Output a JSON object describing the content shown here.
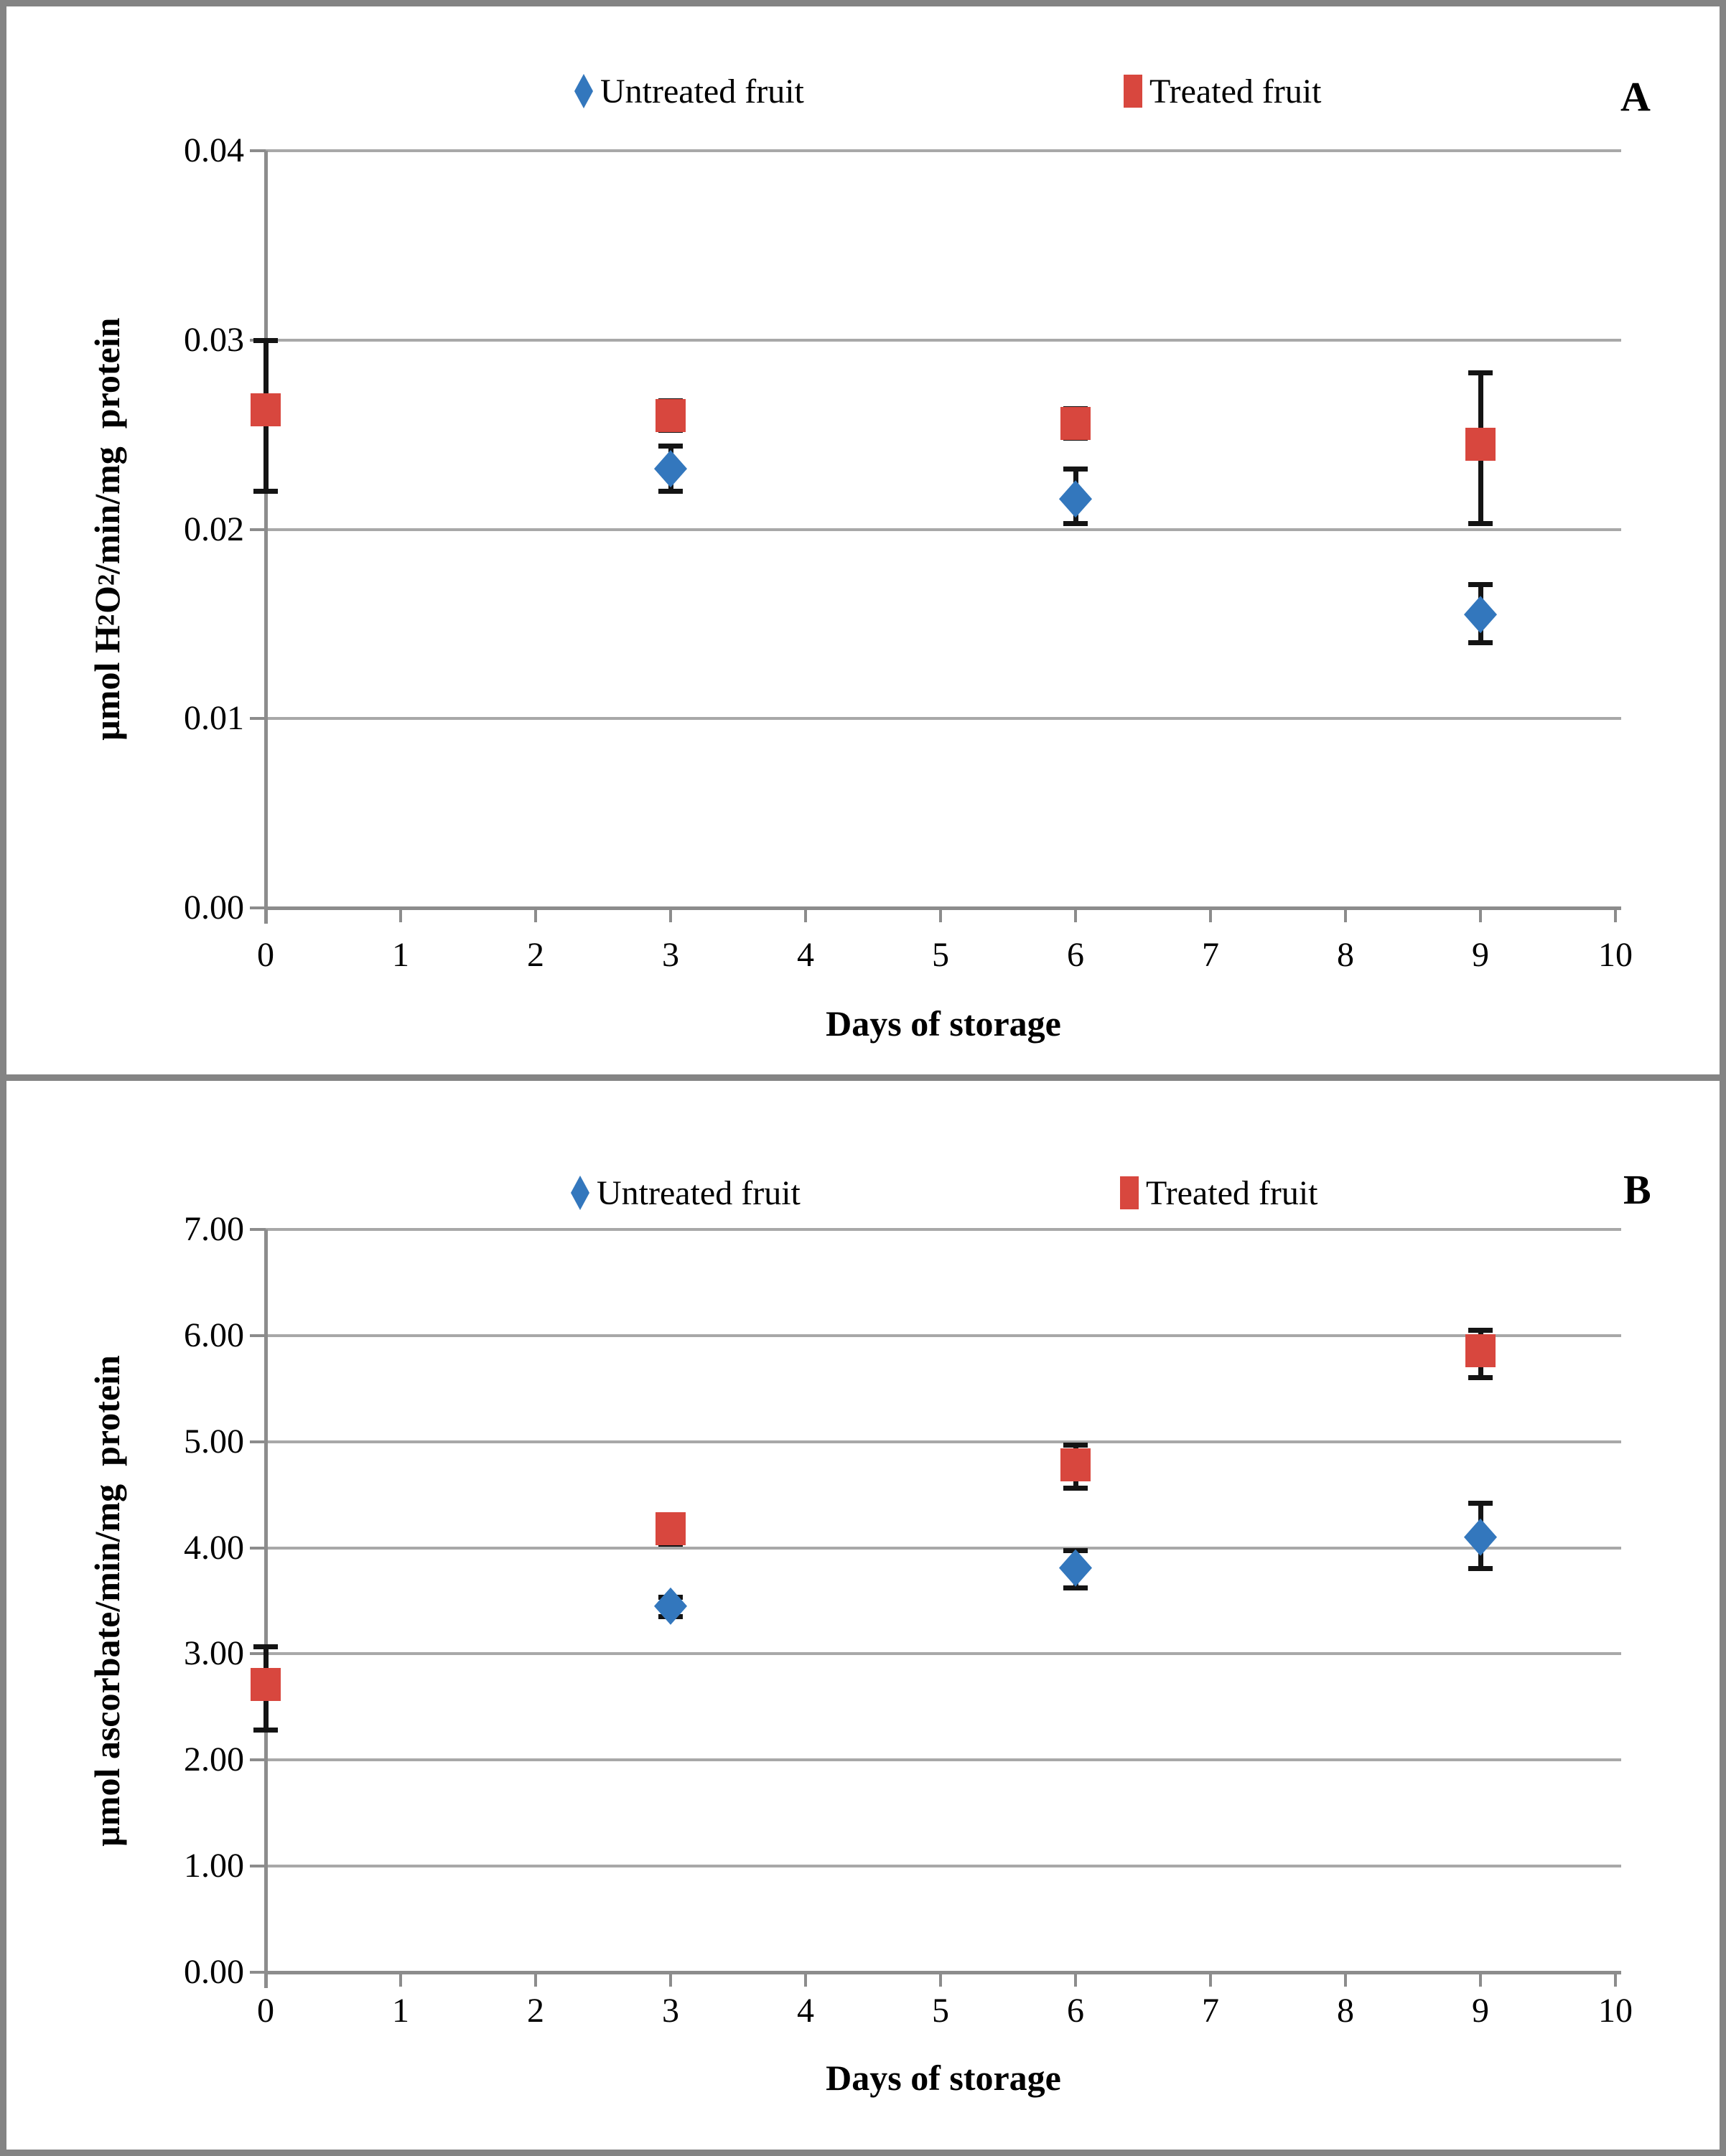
{
  "colors": {
    "untreated": "#3377BD",
    "treated": "#D8473E",
    "error_bar": "#141414",
    "gridline": "#A8A8A8",
    "axis": "#8C8C8C",
    "border": "#848484"
  },
  "chart_data": [
    {
      "panel_label": "A",
      "type": "scatter",
      "title": "",
      "xlabel": "Days of storage",
      "ylabel": "µmol H2O2/min/mg  protein",
      "ylabel_parts": [
        {
          "text": "µmol H"
        },
        {
          "sub": "2"
        },
        {
          "text": "O"
        },
        {
          "sub": "2"
        },
        {
          "text": "/min/mg  protein"
        }
      ],
      "xlim": [
        0,
        10
      ],
      "ylim": [
        0,
        0.04
      ],
      "xticks": [
        0,
        1,
        2,
        3,
        4,
        5,
        6,
        7,
        8,
        9,
        10
      ],
      "ytick_values": [
        0,
        0.01,
        0.02,
        0.03,
        0.04
      ],
      "ytick_labels": [
        "0.00",
        "0.01",
        "0.02",
        "0.03",
        "0.04"
      ],
      "grid": true,
      "legend_position": "top",
      "error_bars": true,
      "series": [
        {
          "name": "Untreated fruit",
          "marker": "diamond",
          "color": "#3377BD",
          "points": [
            {
              "x": 0,
              "y": null
            },
            {
              "x": 3,
              "y": 0.0232,
              "err_low": 0.022,
              "err_high": 0.0244
            },
            {
              "x": 6,
              "y": 0.0216,
              "err_low": 0.0203,
              "err_high": 0.0232
            },
            {
              "x": 9,
              "y": 0.0155,
              "err_low": 0.014,
              "err_high": 0.0171
            }
          ]
        },
        {
          "name": "Treated fruit",
          "marker": "square",
          "color": "#D8473E",
          "points": [
            {
              "x": 0,
              "y": 0.0263,
              "err_low": 0.022,
              "err_high": 0.03
            },
            {
              "x": 3,
              "y": 0.026,
              "err_low": 0.0252,
              "err_high": 0.0268
            },
            {
              "x": 6,
              "y": 0.0256,
              "err_low": 0.0248,
              "err_high": 0.0264
            },
            {
              "x": 9,
              "y": 0.0245,
              "err_low": 0.0203,
              "err_high": 0.0283
            }
          ]
        }
      ]
    },
    {
      "panel_label": "B",
      "type": "scatter",
      "title": "",
      "xlabel": "Days of storage",
      "ylabel": "µmol ascorbate/min/mg  protein",
      "ylabel_parts": [
        {
          "text": "µmol ascorbate/min/mg  protein"
        }
      ],
      "xlim": [
        0,
        10
      ],
      "ylim": [
        0,
        7
      ],
      "xticks": [
        0,
        1,
        2,
        3,
        4,
        5,
        6,
        7,
        8,
        9,
        10
      ],
      "ytick_values": [
        0,
        1,
        2,
        3,
        4,
        5,
        6,
        7
      ],
      "ytick_labels": [
        "0.00",
        "1.00",
        "2.00",
        "3.00",
        "4.00",
        "5.00",
        "6.00",
        "7.00"
      ],
      "grid": true,
      "legend_position": "top",
      "error_bars": true,
      "series": [
        {
          "name": "Untreated fruit",
          "marker": "diamond",
          "color": "#3377BD",
          "points": [
            {
              "x": 0,
              "y": null
            },
            {
              "x": 3,
              "y": 3.45,
              "err_low": 3.35,
              "err_high": 3.54
            },
            {
              "x": 6,
              "y": 3.81,
              "err_low": 3.62,
              "err_high": 3.98
            },
            {
              "x": 9,
              "y": 4.1,
              "err_low": 3.8,
              "err_high": 4.42
            }
          ]
        },
        {
          "name": "Treated fruit",
          "marker": "square",
          "color": "#D8473E",
          "points": [
            {
              "x": 0,
              "y": 2.71,
              "err_low": 2.28,
              "err_high": 3.07
            },
            {
              "x": 3,
              "y": 4.18,
              "err_low": 4.03,
              "err_high": 4.31
            },
            {
              "x": 6,
              "y": 4.78,
              "err_low": 4.56,
              "err_high": 4.97
            },
            {
              "x": 9,
              "y": 5.86,
              "err_low": 5.6,
              "err_high": 6.05
            }
          ]
        }
      ]
    }
  ]
}
